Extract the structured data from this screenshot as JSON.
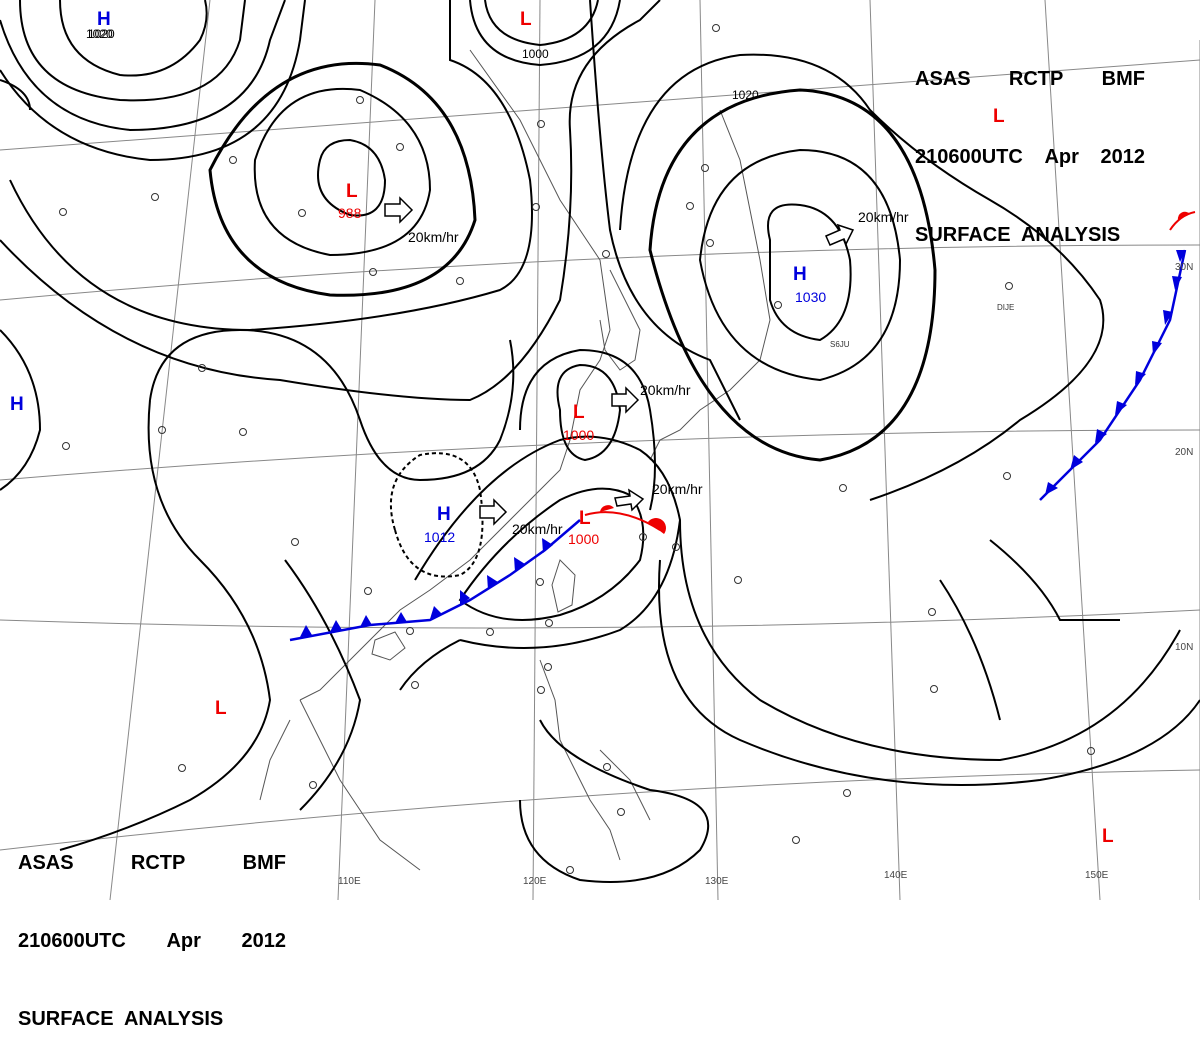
{
  "header": {
    "agency_words": [
      "ASAS",
      "RCTP",
      "BMF"
    ],
    "time_words": [
      "210600UTC",
      "Apr",
      "2012"
    ],
    "title": "SURFACE  ANALYSIS"
  },
  "colors": {
    "high": "#0000dd",
    "low": "#ee0000",
    "isobar": "#000000",
    "grid": "#888888",
    "coast": "#555555"
  },
  "isobar_labels": [
    "1020",
    "1000",
    "1020"
  ],
  "pressure_systems": [
    {
      "id": "h-topleft",
      "type": "H",
      "value": "1020"
    },
    {
      "id": "l-top",
      "type": "L",
      "value": ""
    },
    {
      "id": "l-topright",
      "type": "L",
      "value": ""
    },
    {
      "id": "l-988",
      "type": "L",
      "value": "988"
    },
    {
      "id": "h-1030",
      "type": "H",
      "value": "1030"
    },
    {
      "id": "h-left",
      "type": "H",
      "value": ""
    },
    {
      "id": "l-1000a",
      "type": "L",
      "value": "1000"
    },
    {
      "id": "h-1012",
      "type": "H",
      "value": "1012"
    },
    {
      "id": "l-1000b",
      "type": "L",
      "value": "1000"
    },
    {
      "id": "l-sw",
      "type": "L",
      "value": ""
    },
    {
      "id": "l-se",
      "type": "L",
      "value": ""
    }
  ],
  "motion_vectors": [
    {
      "id": "mv-988",
      "label": "20km/hr"
    },
    {
      "id": "mv-1030",
      "label": "20km/hr"
    },
    {
      "id": "mv-1000a",
      "label": "20km/hr"
    },
    {
      "id": "mv-1000b",
      "label": "20km/hr"
    },
    {
      "id": "mv-1012",
      "label": "20km/hr"
    }
  ],
  "longitude_labels": [
    "110E",
    "120E",
    "130E",
    "140E",
    "150E"
  ],
  "latitude_labels": [
    "30N",
    "20N",
    "10N"
  ],
  "station_ids": [
    "S6JU",
    "DIJE"
  ]
}
